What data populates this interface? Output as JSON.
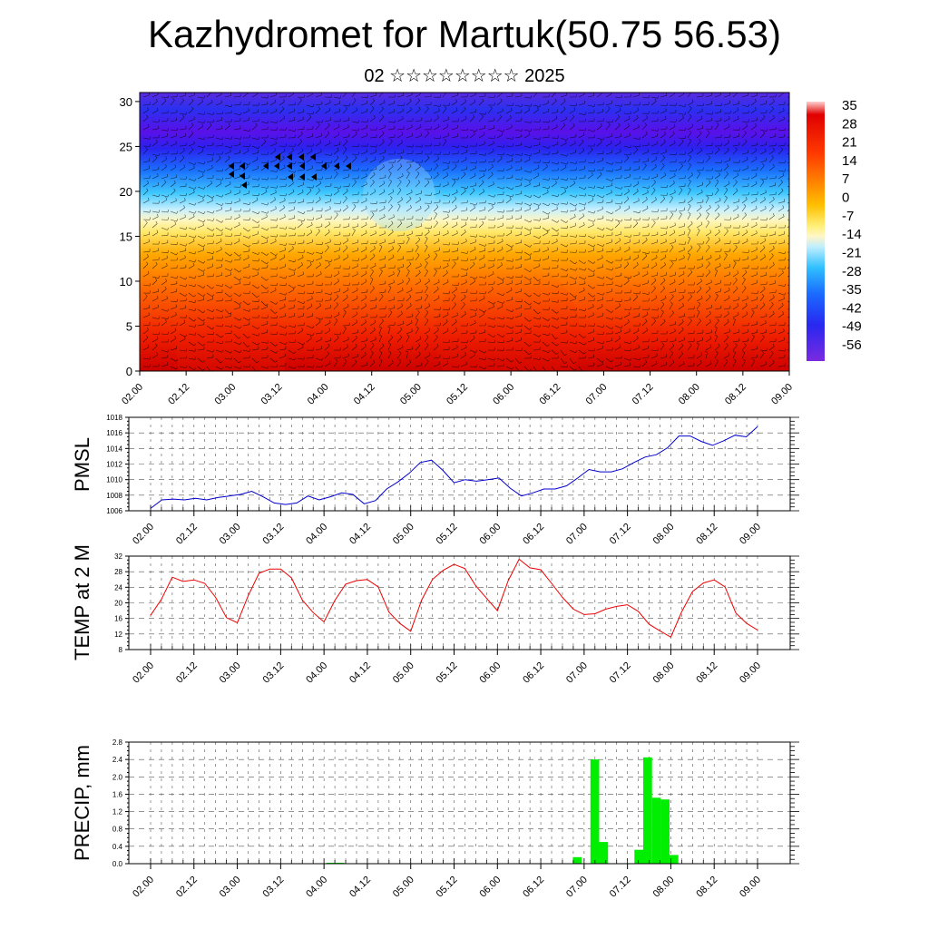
{
  "title": "Kazhydromet for Martuk(50.75 56.53)",
  "subtitle": "02 ☆☆☆☆☆☆☆☆ 2025",
  "colors": {
    "pmsl_line": "#0000cc",
    "temp_line": "#ee0000",
    "precip_bar": "#00ee00",
    "frame": "#000000"
  },
  "chart_data": [
    {
      "type": "heatmap",
      "name": "cross-section",
      "x_ticks": [
        "02.00",
        "02.12",
        "03.00",
        "03.12",
        "04.00",
        "04.12",
        "05.00",
        "05.12",
        "06.00",
        "06.12",
        "07.00",
        "07.12",
        "08.00",
        "08.12",
        "09.00"
      ],
      "y_ticks": [
        "0",
        "5",
        "10",
        "15",
        "20",
        "25",
        "30"
      ],
      "ylim": [
        0,
        31
      ],
      "colorbar": {
        "labels": [
          "35",
          "28",
          "21",
          "14",
          "7",
          "0",
          "-7",
          "-14",
          "-21",
          "-28",
          "-35",
          "-42",
          "-49",
          "-56"
        ],
        "range": [
          -60,
          38
        ]
      },
      "overlay": "wind barbs"
    },
    {
      "type": "line",
      "ylabel": "PMSL",
      "x_ticks": [
        "02.00",
        "02.12",
        "03.00",
        "03.12",
        "04.00",
        "04.12",
        "05.00",
        "05.12",
        "06.00",
        "06.12",
        "07.00",
        "07.12",
        "08.00",
        "08.12",
        "09.00"
      ],
      "y_ticks": [
        "1006",
        "1008",
        "1010",
        "1012",
        "1014",
        "1016",
        "1018"
      ],
      "ylim": [
        1006,
        1018
      ],
      "grid": true,
      "values": [
        1006.3,
        1007.4,
        1007.5,
        1007.4,
        1007.6,
        1007.4,
        1007.7,
        1007.9,
        1008.1,
        1008.5,
        1007.8,
        1007.0,
        1006.8,
        1007.0,
        1007.9,
        1007.4,
        1007.8,
        1008.3,
        1008.1,
        1006.9,
        1007.3,
        1008.8,
        1009.7,
        1010.8,
        1012.2,
        1012.5,
        1011.2,
        1009.6,
        1010.0,
        1009.8,
        1010.0,
        1010.2,
        1008.9,
        1007.9,
        1008.3,
        1008.8,
        1008.8,
        1009.2,
        1010.2,
        1011.3,
        1011.0,
        1011.0,
        1011.4,
        1012.2,
        1012.9,
        1013.2,
        1014.1,
        1015.6,
        1015.6,
        1014.9,
        1014.4,
        1015.0,
        1015.7,
        1015.5,
        1016.8
      ]
    },
    {
      "type": "line",
      "ylabel": "TEMP at 2 M",
      "x_ticks": [
        "02.00",
        "02.12",
        "03.00",
        "03.12",
        "04.00",
        "04.12",
        "05.00",
        "05.12",
        "06.00",
        "06.12",
        "07.00",
        "07.12",
        "08.00",
        "08.12",
        "09.00"
      ],
      "y_ticks": [
        "8",
        "12",
        "16",
        "20",
        "24",
        "28",
        "32"
      ],
      "ylim": [
        8,
        32
      ],
      "grid": true,
      "values": [
        16.8,
        20.9,
        26.6,
        25.5,
        25.9,
        25.0,
        21.4,
        16.2,
        14.9,
        21.8,
        27.6,
        28.7,
        28.7,
        26.4,
        20.7,
        17.5,
        15.1,
        20.6,
        24.8,
        25.7,
        26.0,
        24.1,
        17.6,
        14.7,
        12.7,
        20.7,
        26.0,
        28.4,
        29.9,
        28.8,
        24.4,
        21.2,
        18.0,
        25.7,
        31.2,
        29.0,
        28.5,
        25.0,
        21.4,
        18.4,
        17.0,
        17.2,
        18.4,
        19.1,
        19.5,
        17.8,
        14.5,
        12.8,
        11.2,
        17.7,
        22.9,
        25.1,
        25.9,
        24.1,
        17.4,
        14.7,
        13.0
      ]
    },
    {
      "type": "bar",
      "ylabel": "PRECIP, mm",
      "x_ticks": [
        "02.00",
        "02.12",
        "03.00",
        "03.12",
        "04.00",
        "04.12",
        "05.00",
        "05.12",
        "06.00",
        "06.12",
        "07.00",
        "07.12",
        "08.00",
        "08.12",
        "09.00"
      ],
      "y_ticks": [
        "0.0",
        "0.4",
        "0.8",
        "1.2",
        "1.6",
        "2.0",
        "2.4",
        "2.8"
      ],
      "ylim": [
        0,
        2.8
      ],
      "grid": true,
      "values": [
        0,
        0,
        0,
        0,
        0,
        0,
        0,
        0,
        0,
        0,
        0,
        0,
        0,
        0,
        0,
        0,
        0,
        0,
        0,
        0,
        0.02,
        0.02,
        0,
        0,
        0,
        0,
        0,
        0,
        0,
        0,
        0,
        0,
        0,
        0,
        0,
        0,
        0,
        0,
        0,
        0,
        0,
        0,
        0,
        0,
        0,
        0,
        0,
        0,
        0.15,
        0,
        2.4,
        0.5,
        0,
        0,
        0,
        0.32,
        2.45,
        1.52,
        1.48,
        0.2,
        0,
        0,
        0,
        0,
        0,
        0,
        0,
        0,
        0,
        0
      ]
    }
  ]
}
